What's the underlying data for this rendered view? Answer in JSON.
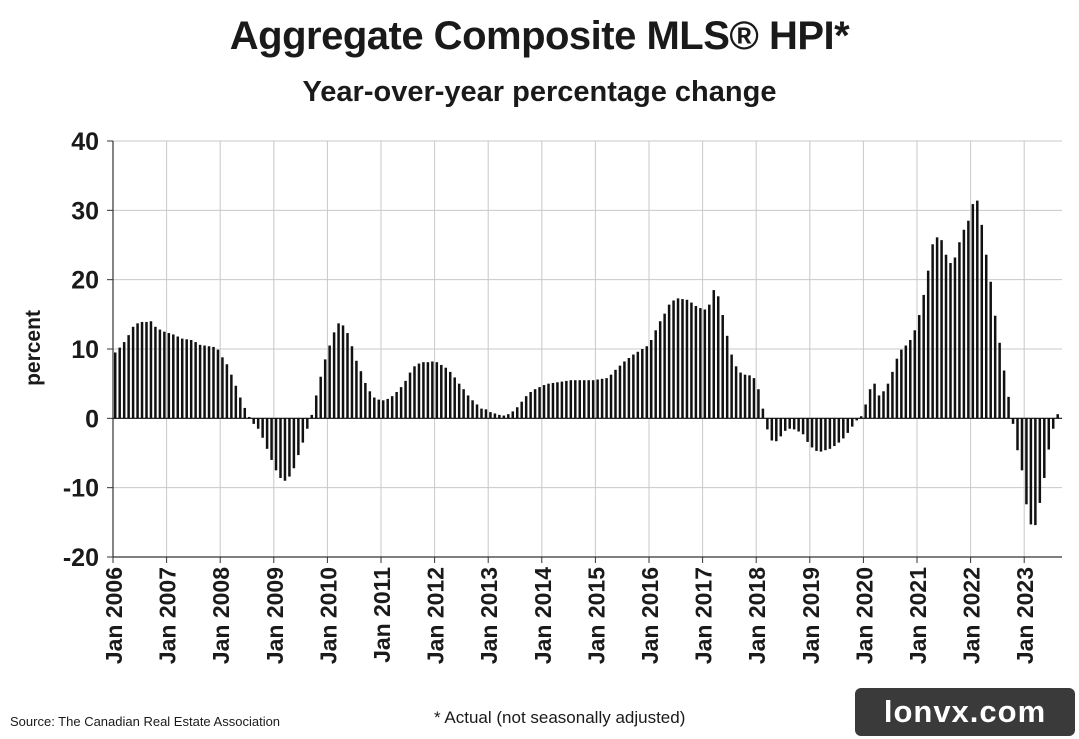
{
  "chart_data": {
    "type": "bar",
    "title": "Aggregate Composite MLS® HPI*",
    "subtitle": "Year-over-year percentage change",
    "ylabel": "percent",
    "xlabel": "",
    "ylim": [
      -20,
      40
    ],
    "yticks": [
      40,
      30,
      20,
      10,
      0,
      -10,
      -20
    ],
    "grid": true,
    "x_start": "Jan 2006",
    "xtick_labels": [
      "Jan 2006",
      "Jan 2007",
      "Jan 2008",
      "Jan 2009",
      "Jan 2010",
      "Jan 2011",
      "Jan 2012",
      "Jan 2013",
      "Jan 2014",
      "Jan 2015",
      "Jan 2016",
      "Jan 2017",
      "Jan 2018",
      "Jan 2019",
      "Jan 2020",
      "Jan 2021",
      "Jan 2022",
      "Jan 2023"
    ],
    "series": [
      {
        "values": [
          9.5,
          10.2,
          11.0,
          12.0,
          13.2,
          13.7,
          13.9,
          13.9,
          14.0,
          13.2,
          12.8,
          12.5,
          12.3,
          12.1,
          11.8,
          11.5,
          11.4,
          11.3,
          11.0,
          10.6,
          10.5,
          10.4,
          10.3,
          9.9,
          8.8,
          7.8,
          6.3,
          4.7,
          3.0,
          1.5,
          0.2,
          -0.8,
          -1.5,
          -2.8,
          -4.4,
          -6.0,
          -7.5,
          -8.6,
          -9.0,
          -8.4,
          -7.2,
          -5.3,
          -3.5,
          -1.5,
          0.5,
          3.3,
          6.0,
          8.5,
          10.5,
          12.4,
          13.7,
          13.4,
          12.3,
          10.4,
          8.3,
          6.8,
          5.1,
          3.9,
          3.0,
          2.7,
          2.6,
          2.8,
          3.2,
          3.8,
          4.5,
          5.4,
          6.6,
          7.5,
          7.9,
          8.1,
          8.1,
          8.2,
          8.1,
          7.7,
          7.3,
          6.7,
          5.9,
          5.0,
          4.2,
          3.3,
          2.6,
          2.0,
          1.4,
          1.3,
          0.9,
          0.7,
          0.5,
          0.4,
          0.6,
          1.0,
          1.6,
          2.4,
          3.2,
          3.8,
          4.2,
          4.5,
          4.8,
          5.0,
          5.1,
          5.2,
          5.3,
          5.4,
          5.5,
          5.5,
          5.5,
          5.5,
          5.5,
          5.5,
          5.6,
          5.7,
          5.8,
          6.3,
          7.0,
          7.6,
          8.2,
          8.7,
          9.2,
          9.6,
          10.0,
          10.4,
          11.3,
          12.7,
          14.0,
          15.1,
          16.4,
          17.0,
          17.3,
          17.2,
          17.1,
          16.7,
          16.2,
          15.9,
          15.7,
          16.4,
          18.5,
          17.6,
          14.9,
          11.9,
          9.2,
          7.5,
          6.6,
          6.3,
          6.2,
          5.8,
          4.2,
          1.4,
          -1.6,
          -3.2,
          -3.3,
          -2.6,
          -1.8,
          -1.5,
          -1.6,
          -1.9,
          -2.3,
          -3.4,
          -4.2,
          -4.7,
          -4.8,
          -4.6,
          -4.4,
          -4.0,
          -3.5,
          -2.9,
          -2.1,
          -1.2,
          -0.3,
          0.3,
          2.0,
          4.2,
          5.0,
          3.3,
          3.9,
          5.0,
          6.7,
          8.6,
          9.9,
          10.5,
          11.3,
          12.7,
          14.9,
          17.8,
          21.3,
          25.1,
          26.1,
          25.7,
          23.6,
          22.4,
          23.2,
          25.4,
          27.2,
          28.5,
          30.9,
          31.4,
          27.9,
          23.6,
          19.7,
          14.8,
          10.9,
          6.9,
          3.1,
          -0.8,
          -4.6,
          -7.5,
          -12.4,
          -15.3,
          -15.4,
          -12.2,
          -8.6,
          -4.5,
          -1.5,
          0.6
        ]
      }
    ]
  },
  "source": "Source: The Canadian Real Estate Association",
  "footnote": "* Actual (not seasonally adjusted)",
  "watermark": "lonvx.com"
}
